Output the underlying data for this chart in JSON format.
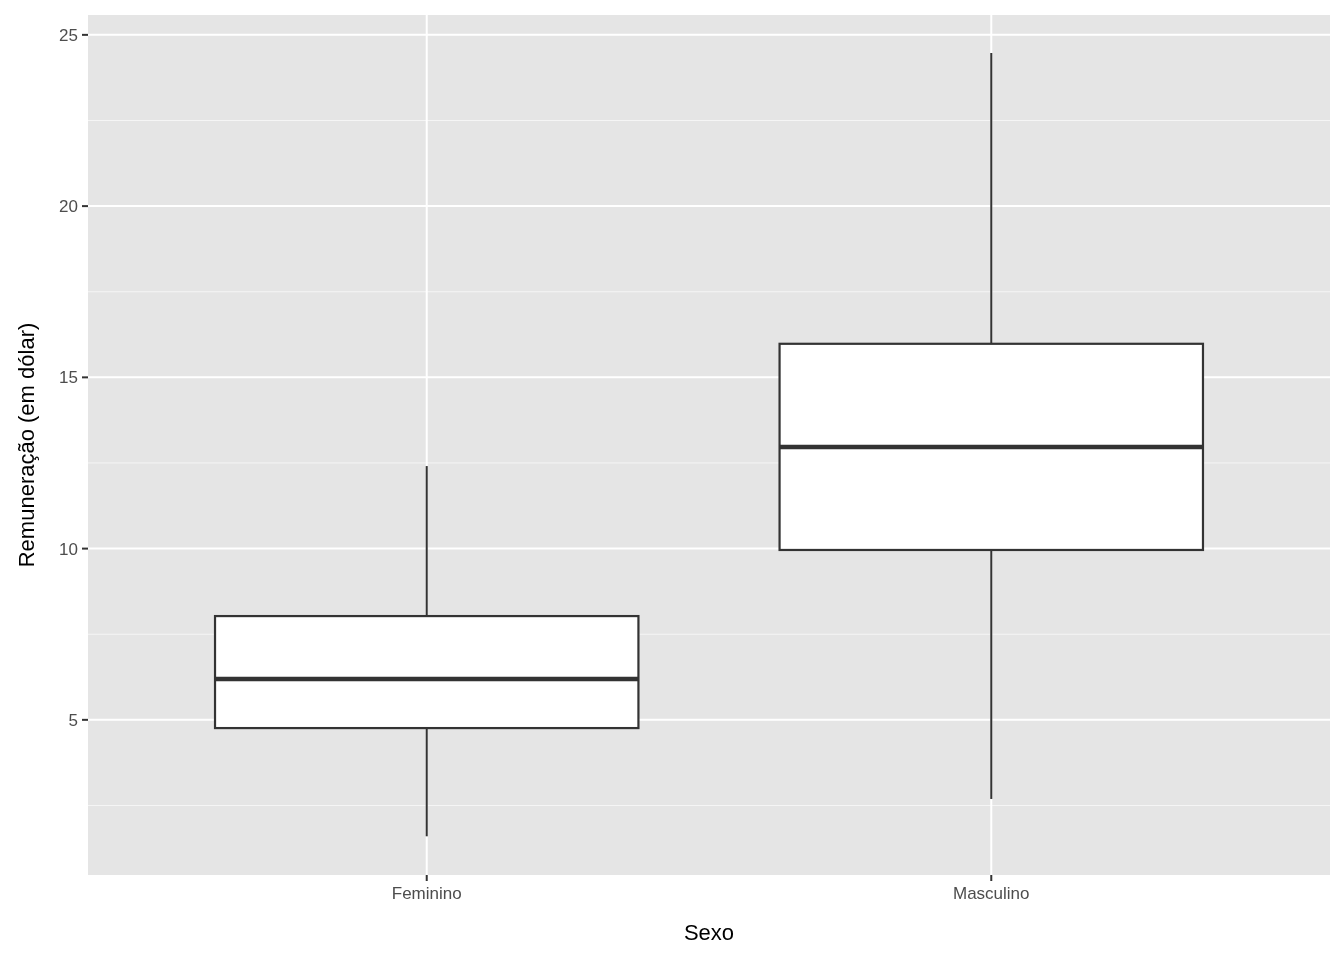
{
  "chart_data": {
    "type": "box",
    "xlabel": "Sexo",
    "ylabel": "Remuneração (em dólar)",
    "categories": [
      "Feminino",
      "Masculino"
    ],
    "boxes": [
      {
        "low": 1.6,
        "q1": 4.76,
        "median": 6.19,
        "q3": 8.03,
        "high": 12.41
      },
      {
        "low": 2.69,
        "q1": 9.96,
        "median": 12.97,
        "q3": 15.98,
        "high": 24.47
      }
    ],
    "ylim": [
      0.47,
      25.58
    ],
    "yticks": [
      5,
      10,
      15,
      20,
      25
    ],
    "grid": true
  }
}
